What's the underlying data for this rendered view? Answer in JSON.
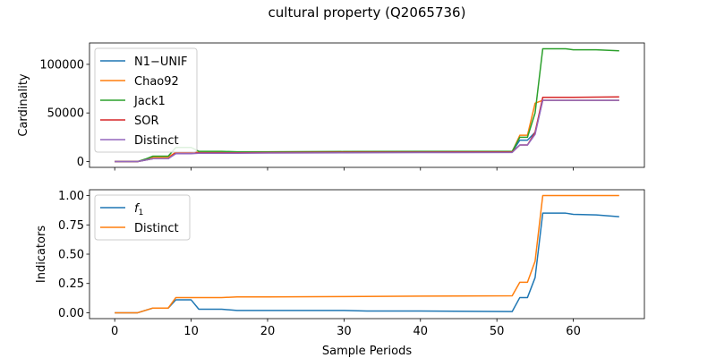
{
  "figure": {
    "title": "cultural property (Q2065736)"
  },
  "chart_data": [
    {
      "type": "line",
      "ylabel": "Cardinality",
      "xlim": [
        -3.3,
        69.3
      ],
      "ylim": [
        -6000,
        122000
      ],
      "yticks": [
        0,
        50000,
        100000
      ],
      "ytick_labels": [
        "0",
        "50000",
        "100000"
      ],
      "xticks": [
        0,
        10,
        20,
        30,
        40,
        50,
        60
      ],
      "show_xtick_labels": false,
      "legend": "top-left",
      "series": [
        {
          "name": "N1−UNIF",
          "color": "#1f77b4",
          "points": [
            [
              0,
              0
            ],
            [
              1,
              0
            ],
            [
              2,
              0
            ],
            [
              3,
              0
            ],
            [
              4,
              1500
            ],
            [
              5,
              3000
            ],
            [
              6,
              3000
            ],
            [
              7,
              3000
            ],
            [
              8,
              9000
            ],
            [
              9,
              9000
            ],
            [
              10,
              9000
            ],
            [
              11,
              9000
            ],
            [
              12,
              9000
            ],
            [
              16,
              9000
            ],
            [
              20,
              9200
            ],
            [
              30,
              9500
            ],
            [
              40,
              9700
            ],
            [
              52,
              9800
            ],
            [
              53,
              22000
            ],
            [
              54,
              22000
            ],
            [
              55,
              30000
            ],
            [
              56,
              63000
            ],
            [
              57,
              63000
            ],
            [
              60,
              63000
            ],
            [
              66,
              63000
            ]
          ]
        },
        {
          "name": "Chao92",
          "color": "#ff7f0e",
          "points": [
            [
              0,
              0
            ],
            [
              1,
              0
            ],
            [
              2,
              0
            ],
            [
              3,
              0
            ],
            [
              4,
              2000
            ],
            [
              5,
              4500
            ],
            [
              6,
              4500
            ],
            [
              7,
              4500
            ],
            [
              8,
              9500
            ],
            [
              9,
              9500
            ],
            [
              10,
              9500
            ],
            [
              11,
              9500
            ],
            [
              16,
              9500
            ],
            [
              20,
              9700
            ],
            [
              30,
              9900
            ],
            [
              40,
              10000
            ],
            [
              52,
              10000
            ],
            [
              53,
              27000
            ],
            [
              54,
              27000
            ],
            [
              55,
              60000
            ],
            [
              56,
              63000
            ],
            [
              60,
              63000
            ],
            [
              66,
              63000
            ]
          ]
        },
        {
          "name": "Jack1",
          "color": "#2ca02c",
          "points": [
            [
              0,
              0
            ],
            [
              1,
              0
            ],
            [
              2,
              0
            ],
            [
              3,
              0
            ],
            [
              4,
              2500
            ],
            [
              5,
              5500
            ],
            [
              6,
              5500
            ],
            [
              7,
              5500
            ],
            [
              8,
              14500
            ],
            [
              9,
              14500
            ],
            [
              10,
              14500
            ],
            [
              11,
              10500
            ],
            [
              14,
              10500
            ],
            [
              16,
              10000
            ],
            [
              20,
              10000
            ],
            [
              30,
              10300
            ],
            [
              40,
              10500
            ],
            [
              52,
              10500
            ],
            [
              53,
              25000
            ],
            [
              54,
              25000
            ],
            [
              55,
              50000
            ],
            [
              56,
              116000
            ],
            [
              59,
              116000
            ],
            [
              60,
              115000
            ],
            [
              63,
              115000
            ],
            [
              66,
              114000
            ]
          ]
        },
        {
          "name": "SOR",
          "color": "#d62728",
          "points": [
            [
              0,
              0
            ],
            [
              1,
              0
            ],
            [
              2,
              0
            ],
            [
              3,
              0
            ],
            [
              4,
              1500
            ],
            [
              5,
              3000
            ],
            [
              6,
              3000
            ],
            [
              7,
              3000
            ],
            [
              8,
              9000
            ],
            [
              9,
              9000
            ],
            [
              10,
              9000
            ],
            [
              11,
              9000
            ],
            [
              16,
              9000
            ],
            [
              20,
              9200
            ],
            [
              30,
              9500
            ],
            [
              40,
              9700
            ],
            [
              52,
              9800
            ],
            [
              53,
              17000
            ],
            [
              54,
              17000
            ],
            [
              55,
              30000
            ],
            [
              56,
              66000
            ],
            [
              60,
              66000
            ],
            [
              66,
              66500
            ]
          ]
        },
        {
          "name": "Distinct",
          "color": "#9467bd",
          "points": [
            [
              0,
              0
            ],
            [
              1,
              0
            ],
            [
              2,
              0
            ],
            [
              3,
              0
            ],
            [
              4,
              1500
            ],
            [
              5,
              3000
            ],
            [
              6,
              3000
            ],
            [
              7,
              3000
            ],
            [
              8,
              8000
            ],
            [
              9,
              8000
            ],
            [
              10,
              8000
            ],
            [
              11,
              8500
            ],
            [
              16,
              8500
            ],
            [
              20,
              8700
            ],
            [
              30,
              9000
            ],
            [
              40,
              9200
            ],
            [
              52,
              9300
            ],
            [
              53,
              17000
            ],
            [
              54,
              17000
            ],
            [
              55,
              28000
            ],
            [
              56,
              63000
            ],
            [
              60,
              63000
            ],
            [
              66,
              63000
            ]
          ]
        }
      ]
    },
    {
      "type": "line",
      "ylabel": "Indicators",
      "xlabel": "Sample Periods",
      "xlim": [
        -3.3,
        69.3
      ],
      "ylim": [
        -0.05,
        1.05
      ],
      "yticks": [
        0.0,
        0.25,
        0.5,
        0.75,
        1.0
      ],
      "ytick_labels": [
        "0.00",
        "0.25",
        "0.50",
        "0.75",
        "1.00"
      ],
      "xticks": [
        0,
        10,
        20,
        30,
        40,
        50,
        60
      ],
      "xtick_labels": [
        "0",
        "10",
        "20",
        "30",
        "40",
        "50",
        "60"
      ],
      "legend": "top-left",
      "series": [
        {
          "name": "f",
          "name_sub": "1",
          "color": "#1f77b4",
          "points": [
            [
              0,
              0
            ],
            [
              1,
              0
            ],
            [
              2,
              0
            ],
            [
              3,
              0
            ],
            [
              4,
              0.02
            ],
            [
              5,
              0.04
            ],
            [
              6,
              0.04
            ],
            [
              7,
              0.04
            ],
            [
              8,
              0.11
            ],
            [
              9,
              0.11
            ],
            [
              10,
              0.11
            ],
            [
              11,
              0.03
            ],
            [
              12,
              0.03
            ],
            [
              14,
              0.03
            ],
            [
              16,
              0.02
            ],
            [
              20,
              0.02
            ],
            [
              30,
              0.02
            ],
            [
              33,
              0.015
            ],
            [
              40,
              0.015
            ],
            [
              52,
              0.01
            ],
            [
              53,
              0.13
            ],
            [
              54,
              0.13
            ],
            [
              55,
              0.3
            ],
            [
              56,
              0.85
            ],
            [
              57,
              0.85
            ],
            [
              59,
              0.85
            ],
            [
              60,
              0.84
            ],
            [
              63,
              0.835
            ],
            [
              66,
              0.82
            ]
          ]
        },
        {
          "name": "Distinct",
          "color": "#ff7f0e",
          "points": [
            [
              0,
              0
            ],
            [
              1,
              0
            ],
            [
              2,
              0
            ],
            [
              3,
              0
            ],
            [
              4,
              0.02
            ],
            [
              5,
              0.04
            ],
            [
              6,
              0.04
            ],
            [
              7,
              0.04
            ],
            [
              8,
              0.13
            ],
            [
              9,
              0.13
            ],
            [
              10,
              0.13
            ],
            [
              11,
              0.13
            ],
            [
              14,
              0.13
            ],
            [
              16,
              0.135
            ],
            [
              20,
              0.135
            ],
            [
              30,
              0.138
            ],
            [
              40,
              0.142
            ],
            [
              52,
              0.145
            ],
            [
              53,
              0.26
            ],
            [
              54,
              0.26
            ],
            [
              55,
              0.44
            ],
            [
              56,
              1.0
            ],
            [
              60,
              1.0
            ],
            [
              66,
              1.0
            ]
          ]
        }
      ]
    }
  ]
}
